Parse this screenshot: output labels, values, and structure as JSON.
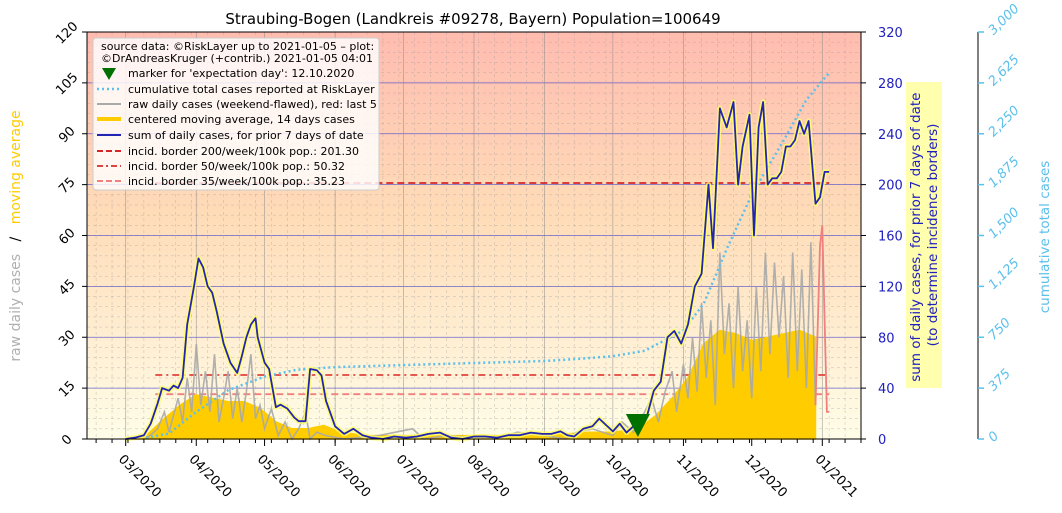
{
  "chart_data": {
    "type": "line",
    "title": "Straubing-Bogen (Landkreis #09278, Bayern) Population=100649",
    "left_axis": {
      "label_raw": "raw daily cases",
      "label_sep": "/",
      "label_avg": "moving average",
      "ylim": [
        0,
        120
      ],
      "ticks": [
        0,
        15,
        30,
        45,
        60,
        75,
        90,
        105,
        120
      ]
    },
    "right_axis": {
      "label_line1": "sum of daily cases, for prior 7 days of date",
      "label_line2": "(to determine incidence borders)",
      "ylim": [
        0,
        320
      ],
      "ticks": [
        0,
        40,
        80,
        120,
        160,
        200,
        240,
        280,
        320
      ]
    },
    "far_right_axis": {
      "label": "cumulative total cases",
      "ylim": [
        0,
        3000
      ],
      "ticks": [
        "0",
        "375",
        "750",
        "1,125",
        "1,500",
        "1,875",
        "2,250",
        "2,625",
        "3,000"
      ]
    },
    "x_axis": {
      "start": "2020-02-13",
      "end": "2021-01-18",
      "tick_labels": [
        "03/2020",
        "04/2020",
        "05/2020",
        "06/2020",
        "07/2020",
        "08/2020",
        "09/2020",
        "10/2020",
        "11/2020",
        "12/2020",
        "01/2021"
      ],
      "tick_dates": [
        "2020-03-01",
        "2020-04-01",
        "2020-05-01",
        "2020-06-01",
        "2020-07-01",
        "2020-08-01",
        "2020-09-01",
        "2020-10-01",
        "2020-11-01",
        "2020-12-01",
        "2021-01-01"
      ]
    },
    "legend": {
      "placement": "top-left",
      "source_line1": "source data: ©RiskLayer up to 2021-01-05 – plot:",
      "source_line2": "©DrAndreasKruger (+contrib.) 2021-01-05 04:01",
      "entries": [
        "marker for 'expectation day': 12.10.2020",
        "cumulative total cases reported at RiskLayer",
        "raw daily cases (weekend-flawed), red: last 5",
        "centered moving average, 14 days cases",
        "sum of daily cases, for prior 7 days of date",
        "incid. border 200/week/100k pop.: 201.30",
        "incid. border 50/week/100k pop.: 50.32",
        "incid. border 35/week/100k pop.: 35.23"
      ]
    },
    "borders": [
      {
        "name": "200",
        "value": 201.3,
        "color": "#d62728"
      },
      {
        "name": "50",
        "value": 50.32,
        "color": "#e0443e"
      },
      {
        "name": "35",
        "value": 35.23,
        "color": "#f08080"
      }
    ],
    "expectation_day": "2020-10-12",
    "colors": {
      "sum7": "#2424b4",
      "cumulative": "#5bc0eb",
      "raw": "#a9a9a9",
      "raw_last5": "#f08080",
      "moving_average": "#ffcc00",
      "right_axis": "#2020c0",
      "far_axis": "#5bc0eb",
      "marker": "#007000"
    },
    "series": {
      "sum7": [
        [
          "2020-03-01",
          0
        ],
        [
          "2020-03-05",
          1
        ],
        [
          "2020-03-09",
          3
        ],
        [
          "2020-03-12",
          12
        ],
        [
          "2020-03-15",
          28
        ],
        [
          "2020-03-17",
          40
        ],
        [
          "2020-03-20",
          38
        ],
        [
          "2020-03-22",
          42
        ],
        [
          "2020-03-24",
          40
        ],
        [
          "2020-03-26",
          48
        ],
        [
          "2020-03-28",
          90
        ],
        [
          "2020-03-31",
          120
        ],
        [
          "2020-04-02",
          142
        ],
        [
          "2020-04-04",
          135
        ],
        [
          "2020-04-06",
          120
        ],
        [
          "2020-04-08",
          115
        ],
        [
          "2020-04-10",
          100
        ],
        [
          "2020-04-13",
          75
        ],
        [
          "2020-04-16",
          60
        ],
        [
          "2020-04-19",
          52
        ],
        [
          "2020-04-21",
          65
        ],
        [
          "2020-04-23",
          80
        ],
        [
          "2020-04-25",
          90
        ],
        [
          "2020-04-27",
          95
        ],
        [
          "2020-04-28",
          80
        ],
        [
          "2020-05-01",
          60
        ],
        [
          "2020-05-03",
          55
        ],
        [
          "2020-05-06",
          25
        ],
        [
          "2020-05-08",
          27
        ],
        [
          "2020-05-11",
          24
        ],
        [
          "2020-05-14",
          17
        ],
        [
          "2020-05-16",
          14
        ],
        [
          "2020-05-19",
          14
        ],
        [
          "2020-05-21",
          55
        ],
        [
          "2020-05-24",
          54
        ],
        [
          "2020-05-26",
          50
        ],
        [
          "2020-05-28",
          30
        ],
        [
          "2020-06-01",
          10
        ],
        [
          "2020-06-05",
          4
        ],
        [
          "2020-06-09",
          8
        ],
        [
          "2020-06-13",
          3
        ],
        [
          "2020-06-17",
          1
        ],
        [
          "2020-06-22",
          0
        ],
        [
          "2020-06-27",
          2
        ],
        [
          "2020-07-02",
          1
        ],
        [
          "2020-07-07",
          2
        ],
        [
          "2020-07-12",
          4
        ],
        [
          "2020-07-17",
          5
        ],
        [
          "2020-07-22",
          1
        ],
        [
          "2020-07-27",
          0
        ],
        [
          "2020-08-01",
          2
        ],
        [
          "2020-08-06",
          2
        ],
        [
          "2020-08-11",
          1
        ],
        [
          "2020-08-16",
          3
        ],
        [
          "2020-08-21",
          3
        ],
        [
          "2020-08-26",
          5
        ],
        [
          "2020-08-31",
          4
        ],
        [
          "2020-09-04",
          4
        ],
        [
          "2020-09-08",
          6
        ],
        [
          "2020-09-11",
          3
        ],
        [
          "2020-09-14",
          2
        ],
        [
          "2020-09-18",
          8
        ],
        [
          "2020-09-22",
          10
        ],
        [
          "2020-09-25",
          16
        ],
        [
          "2020-09-28",
          11
        ],
        [
          "2020-10-01",
          6
        ],
        [
          "2020-10-04",
          12
        ],
        [
          "2020-10-07",
          5
        ],
        [
          "2020-10-10",
          10
        ],
        [
          "2020-10-13",
          10
        ],
        [
          "2020-10-16",
          18
        ],
        [
          "2020-10-19",
          38
        ],
        [
          "2020-10-22",
          45
        ],
        [
          "2020-10-25",
          80
        ],
        [
          "2020-10-28",
          85
        ],
        [
          "2020-10-31",
          75
        ],
        [
          "2020-11-03",
          90
        ],
        [
          "2020-11-06",
          120
        ],
        [
          "2020-11-09",
          130
        ],
        [
          "2020-11-12",
          200
        ],
        [
          "2020-11-14",
          150
        ],
        [
          "2020-11-17",
          260
        ],
        [
          "2020-11-20",
          245
        ],
        [
          "2020-11-23",
          265
        ],
        [
          "2020-11-25",
          200
        ],
        [
          "2020-11-27",
          230
        ],
        [
          "2020-11-30",
          255
        ],
        [
          "2020-12-02",
          160
        ],
        [
          "2020-12-04",
          245
        ],
        [
          "2020-12-06",
          265
        ],
        [
          "2020-12-08",
          200
        ],
        [
          "2020-12-10",
          205
        ],
        [
          "2020-12-12",
          205
        ],
        [
          "2020-12-14",
          210
        ],
        [
          "2020-12-16",
          230
        ],
        [
          "2020-12-18",
          230
        ],
        [
          "2020-12-20",
          235
        ],
        [
          "2020-12-22",
          250
        ],
        [
          "2020-12-24",
          240
        ],
        [
          "2020-12-26",
          250
        ],
        [
          "2020-12-29",
          185
        ],
        [
          "2020-12-31",
          190
        ],
        [
          "2021-01-02",
          210
        ],
        [
          "2021-01-04",
          210
        ]
      ],
      "moving_average": [
        [
          "2020-03-01",
          0
        ],
        [
          "2020-03-10",
          1
        ],
        [
          "2020-03-18",
          6
        ],
        [
          "2020-03-25",
          10
        ],
        [
          "2020-04-01",
          13
        ],
        [
          "2020-04-08",
          12
        ],
        [
          "2020-04-15",
          11
        ],
        [
          "2020-04-22",
          11
        ],
        [
          "2020-04-29",
          9
        ],
        [
          "2020-05-06",
          5
        ],
        [
          "2020-05-13",
          3
        ],
        [
          "2020-05-20",
          3
        ],
        [
          "2020-05-27",
          4
        ],
        [
          "2020-06-03",
          2
        ],
        [
          "2020-06-15",
          1
        ],
        [
          "2020-07-01",
          1
        ],
        [
          "2020-08-01",
          1
        ],
        [
          "2020-09-01",
          1
        ],
        [
          "2020-09-20",
          2
        ],
        [
          "2020-10-01",
          2
        ],
        [
          "2020-10-12",
          3
        ],
        [
          "2020-10-20",
          7
        ],
        [
          "2020-10-27",
          12
        ],
        [
          "2020-11-03",
          18
        ],
        [
          "2020-11-10",
          28
        ],
        [
          "2020-11-17",
          32
        ],
        [
          "2020-11-24",
          31
        ],
        [
          "2020-12-01",
          29
        ],
        [
          "2020-12-08",
          30
        ],
        [
          "2020-12-15",
          31
        ],
        [
          "2020-12-22",
          32
        ],
        [
          "2020-12-29",
          30
        ]
      ],
      "raw": [
        [
          "2020-03-10",
          0
        ],
        [
          "2020-03-15",
          3
        ],
        [
          "2020-03-18",
          8
        ],
        [
          "2020-03-20",
          2
        ],
        [
          "2020-03-24",
          12
        ],
        [
          "2020-03-26",
          5
        ],
        [
          "2020-03-28",
          18
        ],
        [
          "2020-03-30",
          8
        ],
        [
          "2020-04-01",
          28
        ],
        [
          "2020-04-03",
          10
        ],
        [
          "2020-04-05",
          20
        ],
        [
          "2020-04-07",
          8
        ],
        [
          "2020-04-09",
          25
        ],
        [
          "2020-04-11",
          5
        ],
        [
          "2020-04-13",
          12
        ],
        [
          "2020-04-15",
          20
        ],
        [
          "2020-04-17",
          6
        ],
        [
          "2020-04-19",
          15
        ],
        [
          "2020-04-21",
          5
        ],
        [
          "2020-04-23",
          14
        ],
        [
          "2020-04-25",
          25
        ],
        [
          "2020-04-27",
          6
        ],
        [
          "2020-04-29",
          10
        ],
        [
          "2020-05-01",
          3
        ],
        [
          "2020-05-04",
          9
        ],
        [
          "2020-05-07",
          1
        ],
        [
          "2020-05-10",
          5
        ],
        [
          "2020-05-13",
          0
        ],
        [
          "2020-05-16",
          3
        ],
        [
          "2020-05-19",
          8
        ],
        [
          "2020-05-21",
          0
        ],
        [
          "2020-05-24",
          2
        ],
        [
          "2020-05-28",
          1
        ],
        [
          "2020-06-05",
          0
        ],
        [
          "2020-06-20",
          1
        ],
        [
          "2020-07-05",
          3
        ],
        [
          "2020-07-10",
          0
        ],
        [
          "2020-07-20",
          1
        ],
        [
          "2020-08-10",
          0
        ],
        [
          "2020-08-20",
          2
        ],
        [
          "2020-09-01",
          1
        ],
        [
          "2020-09-10",
          0
        ],
        [
          "2020-09-15",
          2
        ],
        [
          "2020-09-22",
          3
        ],
        [
          "2020-10-01",
          1
        ],
        [
          "2020-10-05",
          5
        ],
        [
          "2020-10-10",
          2
        ],
        [
          "2020-10-15",
          8
        ],
        [
          "2020-10-18",
          12
        ],
        [
          "2020-10-21",
          5
        ],
        [
          "2020-10-24",
          14
        ],
        [
          "2020-10-27",
          20
        ],
        [
          "2020-10-29",
          8
        ],
        [
          "2020-11-01",
          22
        ],
        [
          "2020-11-03",
          12
        ],
        [
          "2020-11-05",
          30
        ],
        [
          "2020-11-07",
          14
        ],
        [
          "2020-11-09",
          40
        ],
        [
          "2020-11-11",
          18
        ],
        [
          "2020-11-13",
          35
        ],
        [
          "2020-11-15",
          10
        ],
        [
          "2020-11-17",
          55
        ],
        [
          "2020-11-19",
          25
        ],
        [
          "2020-11-21",
          40
        ],
        [
          "2020-11-23",
          15
        ],
        [
          "2020-11-25",
          45
        ],
        [
          "2020-11-27",
          20
        ],
        [
          "2020-11-29",
          35
        ],
        [
          "2020-12-01",
          12
        ],
        [
          "2020-12-03",
          45
        ],
        [
          "2020-12-05",
          20
        ],
        [
          "2020-12-07",
          55
        ],
        [
          "2020-12-09",
          25
        ],
        [
          "2020-12-11",
          52
        ],
        [
          "2020-12-13",
          30
        ],
        [
          "2020-12-15",
          48
        ],
        [
          "2020-12-17",
          18
        ],
        [
          "2020-12-19",
          55
        ],
        [
          "2020-12-21",
          20
        ],
        [
          "2020-12-23",
          50
        ],
        [
          "2020-12-25",
          15
        ],
        [
          "2020-12-27",
          58
        ],
        [
          "2020-12-29",
          10
        ]
      ],
      "raw_last5": [
        [
          "2020-12-31",
          57
        ],
        [
          "2021-01-01",
          63
        ],
        [
          "2021-01-02",
          35
        ],
        [
          "2021-01-03",
          8
        ],
        [
          "2021-01-04",
          8
        ]
      ],
      "cumulative": [
        [
          "2020-03-10",
          10
        ],
        [
          "2020-03-20",
          40
        ],
        [
          "2020-04-01",
          200
        ],
        [
          "2020-04-15",
          360
        ],
        [
          "2020-05-01",
          460
        ],
        [
          "2020-05-15",
          510
        ],
        [
          "2020-06-01",
          530
        ],
        [
          "2020-07-01",
          545
        ],
        [
          "2020-08-01",
          560
        ],
        [
          "2020-09-01",
          575
        ],
        [
          "2020-09-15",
          590
        ],
        [
          "2020-10-01",
          610
        ],
        [
          "2020-10-15",
          650
        ],
        [
          "2020-11-01",
          800
        ],
        [
          "2020-11-10",
          1000
        ],
        [
          "2020-11-20",
          1400
        ],
        [
          "2020-12-01",
          1800
        ],
        [
          "2020-12-15",
          2200
        ],
        [
          "2020-12-25",
          2500
        ],
        [
          "2021-01-04",
          2700
        ]
      ]
    }
  }
}
